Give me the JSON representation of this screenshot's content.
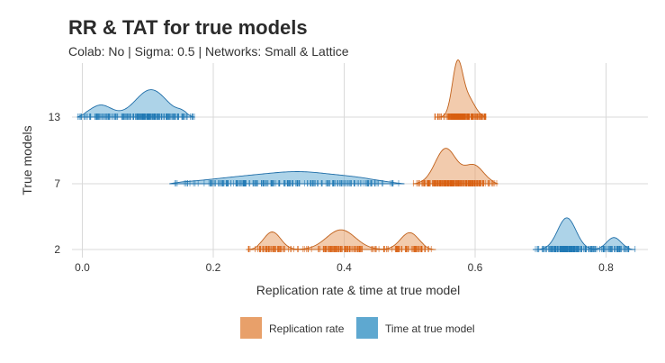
{
  "chart_data": {
    "type": "ridgeline",
    "title": "RR & TAT for true models",
    "subtitle": "Colab: No | Sigma: 0.5 | Networks: Small & Lattice",
    "xlabel": "Replication rate & time at true model",
    "ylabel": "True models",
    "xlim": [
      -0.02,
      0.86
    ],
    "x_ticks": [
      "0.0",
      "0.2",
      "0.4",
      "0.6",
      "0.8"
    ],
    "x_tick_values": [
      0.0,
      0.2,
      0.4,
      0.6,
      0.8
    ],
    "categories": [
      "2",
      "7",
      "13"
    ],
    "grid": true,
    "legend_position": "bottom",
    "colors": {
      "replication_rate_fill": "#e8a06a",
      "replication_rate_line": "#c0601a",
      "replication_rate_rug": "#d85f10",
      "time_at_true_model_fill": "#6aaed6",
      "time_at_true_model_line": "#1f6ea8",
      "time_at_true_model_rug": "#1f78b4",
      "grid": "#d9d9d9"
    },
    "series": [
      {
        "name": "Replication rate",
        "densities": [
          {
            "category": "2",
            "range": [
              0.25,
              0.54
            ],
            "peaks": [
              {
                "x": 0.29,
                "w": 0.013,
                "h": 0.25
              },
              {
                "x": 0.395,
                "w": 0.022,
                "h": 0.28
              },
              {
                "x": 0.5,
                "w": 0.014,
                "h": 0.24
              }
            ]
          },
          {
            "category": "7",
            "range": [
              0.505,
              0.635
            ],
            "peaks": [
              {
                "x": 0.555,
                "w": 0.016,
                "h": 0.5
              },
              {
                "x": 0.598,
                "w": 0.015,
                "h": 0.26
              }
            ]
          },
          {
            "category": "13",
            "range": [
              0.538,
              0.617
            ],
            "peaks": [
              {
                "x": 0.573,
                "w": 0.008,
                "h": 0.75
              },
              {
                "x": 0.59,
                "w": 0.01,
                "h": 0.25
              }
            ]
          }
        ]
      },
      {
        "name": "Time at true model",
        "densities": [
          {
            "category": "2",
            "range": [
              0.688,
              0.845
            ],
            "peaks": [
              {
                "x": 0.74,
                "w": 0.014,
                "h": 0.45
              },
              {
                "x": 0.812,
                "w": 0.011,
                "h": 0.17
              }
            ]
          },
          {
            "category": "7",
            "range": [
              0.133,
              0.492
            ],
            "peaks": [
              {
                "x": 0.27,
                "w": 0.07,
                "h": 0.11
              },
              {
                "x": 0.345,
                "w": 0.045,
                "h": 0.1
              },
              {
                "x": 0.42,
                "w": 0.035,
                "h": 0.06
              }
            ]
          },
          {
            "category": "13",
            "range": [
              -0.008,
              0.172
            ],
            "peaks": [
              {
                "x": 0.028,
                "w": 0.017,
                "h": 0.17
              },
              {
                "x": 0.105,
                "w": 0.024,
                "h": 0.39
              },
              {
                "x": 0.152,
                "w": 0.008,
                "h": 0.05
              }
            ]
          }
        ]
      }
    ]
  },
  "legend": {
    "items": [
      {
        "label": "Replication rate",
        "color": "#e8a06a"
      },
      {
        "label": "Time at true model",
        "color": "#5ea8d0"
      }
    ]
  }
}
